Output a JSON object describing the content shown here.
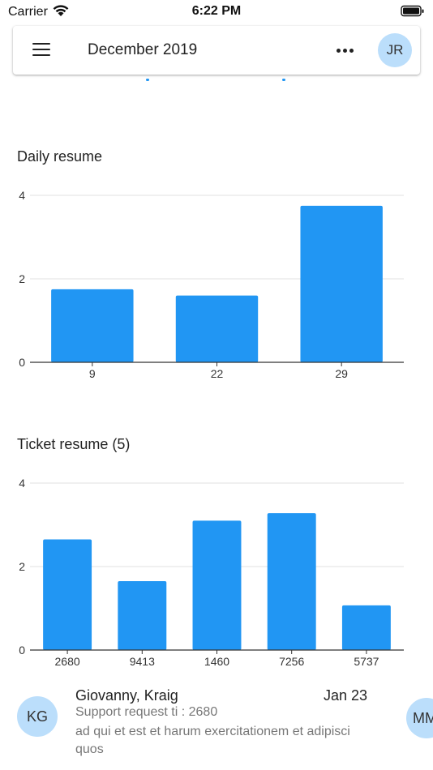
{
  "status_bar": {
    "carrier": "Carrier",
    "time": "6:22 PM"
  },
  "header": {
    "title": "December 2019",
    "avatar_initials": "JR",
    "icons": [
      "menu-icon",
      "more-icon"
    ]
  },
  "charts": {
    "daily": {
      "title": "Daily resume"
    },
    "ticket": {
      "title": "Ticket resume (5)"
    }
  },
  "chart_data": [
    {
      "type": "bar",
      "title": "Daily resume",
      "categories": [
        "9",
        "22",
        "29"
      ],
      "values": [
        1.75,
        1.6,
        3.75
      ],
      "ylim": [
        0,
        4
      ],
      "yticks": [
        0,
        2,
        4
      ],
      "grid": true,
      "color": "#2196f3"
    },
    {
      "type": "bar",
      "title": "Ticket resume (5)",
      "categories": [
        "2680",
        "9413",
        "1460",
        "7256",
        "5737"
      ],
      "values": [
        2.65,
        1.65,
        3.1,
        3.28,
        1.07
      ],
      "ylim": [
        0,
        4
      ],
      "yticks": [
        0,
        2,
        4
      ],
      "grid": true,
      "color": "#2196f3"
    }
  ],
  "list": {
    "items": [
      {
        "initials": "KG",
        "name": "Giovanny, Kraig",
        "date": "Jan 23",
        "subtitle": "Support request ti : 2680",
        "body": "ad qui et est et harum exercitationem et adipisci quos"
      },
      {
        "initials": "MM"
      }
    ]
  },
  "colors": {
    "accent": "#2196f3",
    "avatar_bg": "#bbdefb"
  }
}
